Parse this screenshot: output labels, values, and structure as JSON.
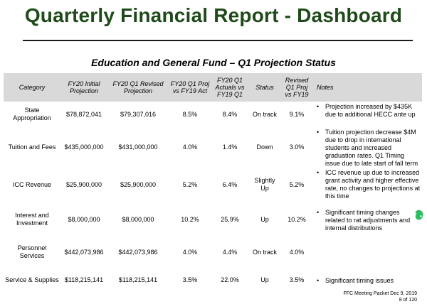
{
  "header": {
    "title": "Quarterly Financial Report - Dashboard",
    "subtitle": "Education and General Fund – Q1 Projection Status"
  },
  "table": {
    "columns": {
      "category": "Category",
      "initial": "FY20 Initial Projection",
      "revised": "FY20 Q1 Revised Projection",
      "proj_vs": "FY20 Q1 Proj vs FY19 Act",
      "actuals_vs": "FY20 Q1 Actuals vs FY19 Q1",
      "status": "Status",
      "revised_vs": "Revised Q1 Proj vs FY19",
      "notes": "Notes"
    },
    "rows": [
      {
        "category": "State Appropriation",
        "initial": "$78,872,041",
        "revised": "$79,307,016",
        "proj_vs": "8.5%",
        "actuals_vs": "8.4%",
        "status": "On track",
        "revised_vs": "9.1%",
        "note": "Projection increased by $435K due to additional HECC ante up"
      },
      {
        "category": "Tuition and Fees",
        "initial": "$435,000,000",
        "revised": "$431,000,000",
        "proj_vs": "4.0%",
        "actuals_vs": "1.4%",
        "status": "Down",
        "revised_vs": "3.0%",
        "note": "Tuition projection decrease $4M due to drop in international students and increased graduation rates.  Q1 Timing issue due to late start of fall term"
      },
      {
        "category": "ICC Revenue",
        "initial": "$25,900,000",
        "revised": "$25,900,000",
        "proj_vs": "5.2%",
        "actuals_vs": "6.4%",
        "status": "Slightly Up",
        "revised_vs": "5.2%",
        "note": "ICC revenue up due to increased grant activity and higher effective rate, no changes to projections at this time"
      },
      {
        "category": "Interest and Investment",
        "initial": "$8,000,000",
        "revised": "$8,000,000",
        "proj_vs": "10.2%",
        "actuals_vs": "25.9%",
        "status": "Up",
        "revised_vs": "10.2%",
        "note": "Significant timing changes related to rat adjustments and internal distributions"
      },
      {
        "category": "Personnel Services",
        "initial": "$442,073,986",
        "revised": "$442,073,986",
        "proj_vs": "4.0%",
        "actuals_vs": "4.4%",
        "status": "On track",
        "revised_vs": "4.0%",
        "note": ""
      },
      {
        "category": "Service & Supplies",
        "initial": "$118,215,141",
        "revised": "$118,215,141",
        "proj_vs": "3.5%",
        "actuals_vs": "22.0%",
        "status": "Up",
        "revised_vs": "3.5%",
        "note": "Significant timing issues"
      }
    ]
  },
  "footer": {
    "line1": "FFC Meeting Packet Dec 9, 2019",
    "line2": "8 of 120"
  },
  "icons": {
    "leaf": "evernote-leaf-icon"
  },
  "colors": {
    "title": "#1f4a1a",
    "header_bg": "#d9d9d9",
    "icon": "#2dbe60"
  }
}
